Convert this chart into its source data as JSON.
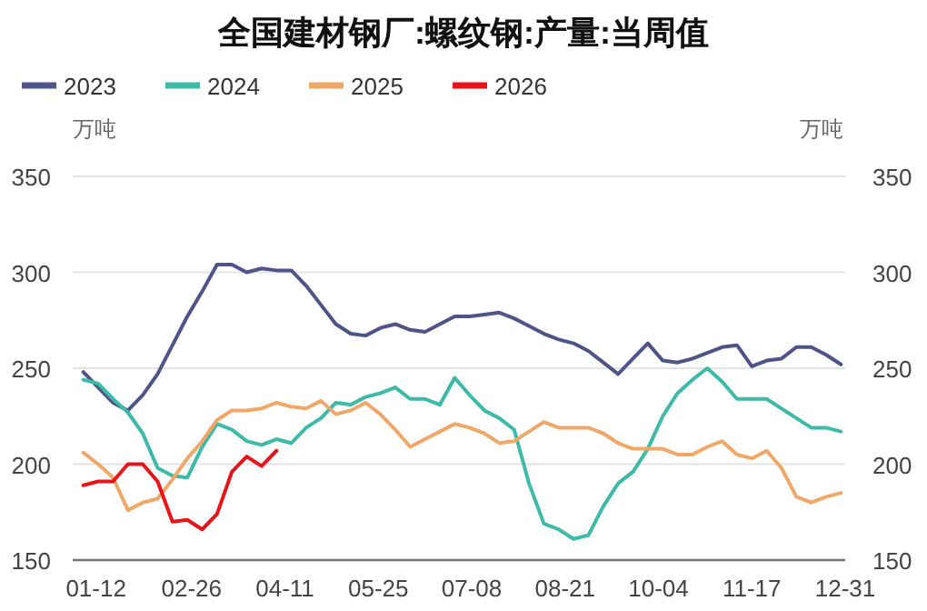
{
  "chart_data": {
    "type": "line",
    "title": "全国建材钢厂:螺纹钢:产量:当周值",
    "ylabel": "万吨",
    "y2label": "万吨",
    "x": [
      "--01-06",
      "--01-13",
      "--01-20",
      "--01-27",
      "--02-03",
      "--02-10",
      "--02-17",
      "--02-24",
      "--03-03",
      "--03-10",
      "--03-17",
      "--03-24",
      "--03-31",
      "--04-07",
      "--04-14",
      "--04-21",
      "--04-28",
      "--05-05",
      "--05-12",
      "--05-19",
      "--05-26",
      "--06-02",
      "--06-09",
      "--06-16",
      "--06-23",
      "--06-30",
      "--07-07",
      "--07-14",
      "--07-21",
      "--07-28",
      "--08-04",
      "--08-11",
      "--08-18",
      "--08-25",
      "--09-01",
      "--09-08",
      "--09-15",
      "--09-22",
      "--09-29",
      "--10-06",
      "--10-13",
      "--10-20",
      "--10-27",
      "--11-03",
      "--11-10",
      "--11-17",
      "--11-24",
      "--12-01",
      "--12-08",
      "--12-15",
      "--12-22",
      "--12-29"
    ],
    "series": [
      {
        "name": "2023",
        "color": "#4e5488",
        "values": [
          248,
          240,
          232,
          228,
          236,
          247,
          262,
          277,
          290,
          304,
          304,
          300,
          302,
          301,
          301,
          293,
          283,
          273,
          268,
          267,
          271,
          273,
          270,
          269,
          273,
          277,
          277,
          278,
          279,
          276,
          272,
          268,
          265,
          263,
          259,
          253,
          247,
          255,
          263,
          254,
          253,
          255,
          258,
          261,
          262,
          251,
          254,
          255,
          261,
          261,
          257,
          252
        ]
      },
      {
        "name": "2024",
        "color": "#3dbaa8",
        "values": [
          244,
          242,
          234,
          227,
          216,
          198,
          194,
          193,
          209,
          221,
          218,
          212,
          210,
          213,
          211,
          219,
          224,
          232,
          231,
          235,
          237,
          240,
          234,
          234,
          231,
          245,
          236,
          228,
          224,
          218,
          190,
          169,
          166,
          161,
          163,
          178,
          190,
          196,
          208,
          225,
          237,
          244,
          250,
          243,
          234,
          234,
          234,
          229,
          224,
          219,
          219,
          217
        ]
      },
      {
        "name": "2025",
        "color": "#f0a868",
        "values": [
          206,
          200,
          193,
          176,
          180,
          182,
          192,
          203,
          212,
          223,
          228,
          228,
          229,
          232,
          230,
          229,
          233,
          226,
          228,
          232,
          226,
          218,
          209,
          213,
          217,
          221,
          219,
          216,
          211,
          212,
          217,
          222,
          219,
          219,
          219,
          216,
          211,
          208,
          208,
          208,
          205,
          205,
          209,
          212,
          205,
          203,
          207,
          198,
          183,
          180,
          183,
          185
        ]
      },
      {
        "name": "2026",
        "color": "#e8141a",
        "x": [
          "--01-06",
          "--01-13",
          "--01-20",
          "--01-27",
          "--02-03",
          "--02-10",
          "--02-17",
          "--02-24",
          "--03-03",
          "--03-10",
          "--03-17",
          "--03-24",
          "--03-31",
          "--04-07"
        ],
        "values": [
          189,
          191,
          191,
          200,
          200,
          191,
          170,
          171,
          166,
          174,
          196,
          204,
          199,
          207
        ]
      }
    ],
    "xlim": [
      "--01-01",
      "--12-31"
    ],
    "xticks": [
      {
        "value": "--01-12",
        "label": "01-12"
      },
      {
        "value": "--02-26",
        "label": "02-26"
      },
      {
        "value": "--04-11",
        "label": "04-11"
      },
      {
        "value": "--05-25",
        "label": "05-25"
      },
      {
        "value": "--07-08",
        "label": "07-08"
      },
      {
        "value": "--08-21",
        "label": "08-21"
      },
      {
        "value": "--10-04",
        "label": "10-04"
      },
      {
        "value": "--11-17",
        "label": "11-17"
      },
      {
        "value": "--12-31",
        "label": "12-31"
      }
    ],
    "ylim": [
      150,
      350
    ],
    "yticks": [
      150,
      200,
      250,
      300,
      350
    ],
    "y2lim": [
      150,
      350
    ],
    "y2ticks": [
      150,
      200,
      250,
      300,
      350
    ],
    "grid": "y",
    "legend": "top left"
  }
}
